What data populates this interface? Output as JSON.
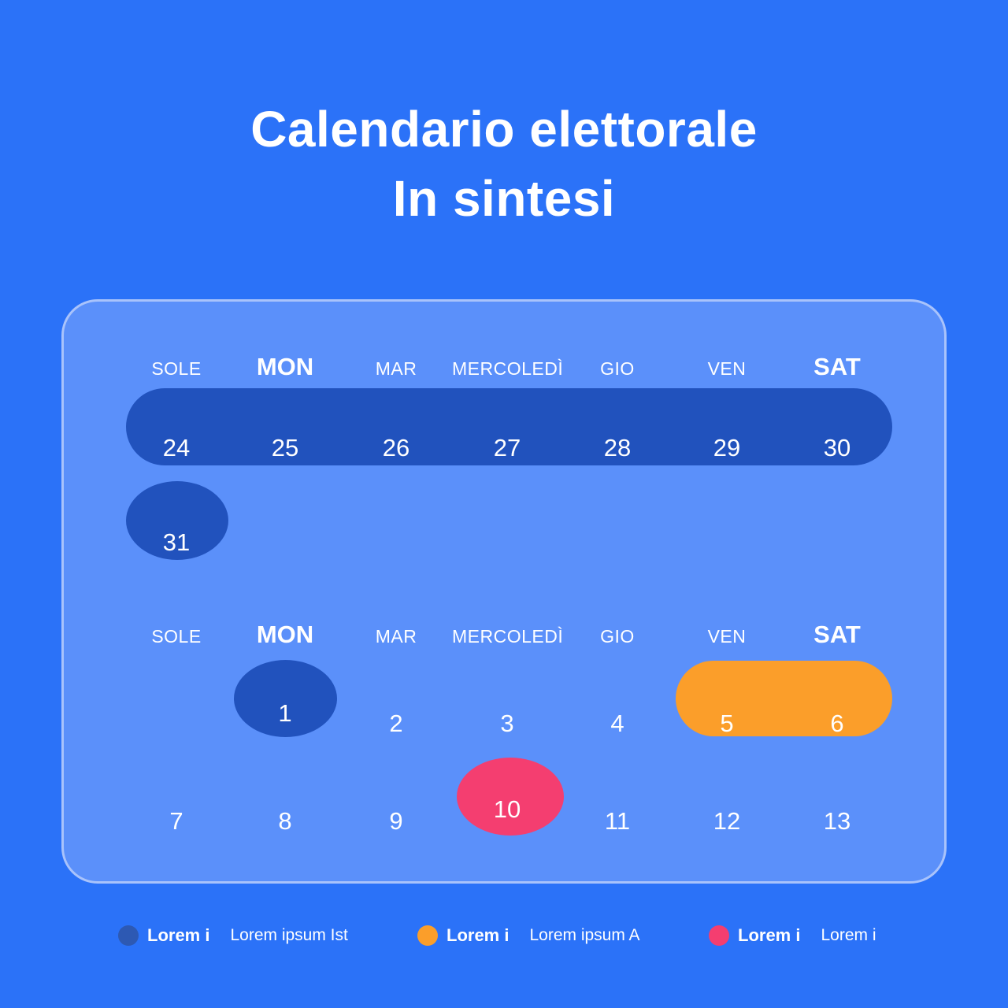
{
  "title": {
    "line1": "Calendario elettorale",
    "line2": "In sintesi"
  },
  "calendar": {
    "day_headers": [
      "SOLE",
      "MON",
      "MAR",
      "MERCOLEDÌ",
      "GIO",
      "VEN",
      "SAT"
    ],
    "month1_week": [
      "24",
      "25",
      "26",
      "27",
      "28",
      "29",
      "30"
    ],
    "month1_overflow": "31",
    "month2_week1": [
      "1",
      "2",
      "3",
      "4",
      "5",
      "6"
    ],
    "month2_week2": [
      "7",
      "8",
      "9",
      "10",
      "11",
      "12",
      "13"
    ]
  },
  "legend": {
    "items": [
      {
        "label": "Lorem i",
        "description": "Lorem ipsum Ist",
        "color": "#2d59b3"
      },
      {
        "label": "Lorem i",
        "description": "Lorem ipsum A",
        "color": "#fb9e2a"
      },
      {
        "label": "Lorem i",
        "description": "Lorem i",
        "color": "#f43e70"
      }
    ]
  },
  "colors": {
    "background": "#2b72f8",
    "card": "#5b90fa",
    "card_border": "#a9c3fb",
    "highlight_blue": "#2152bd",
    "highlight_orange": "#fb9e2a",
    "highlight_pink": "#f43e70",
    "text": "#ffffff"
  }
}
